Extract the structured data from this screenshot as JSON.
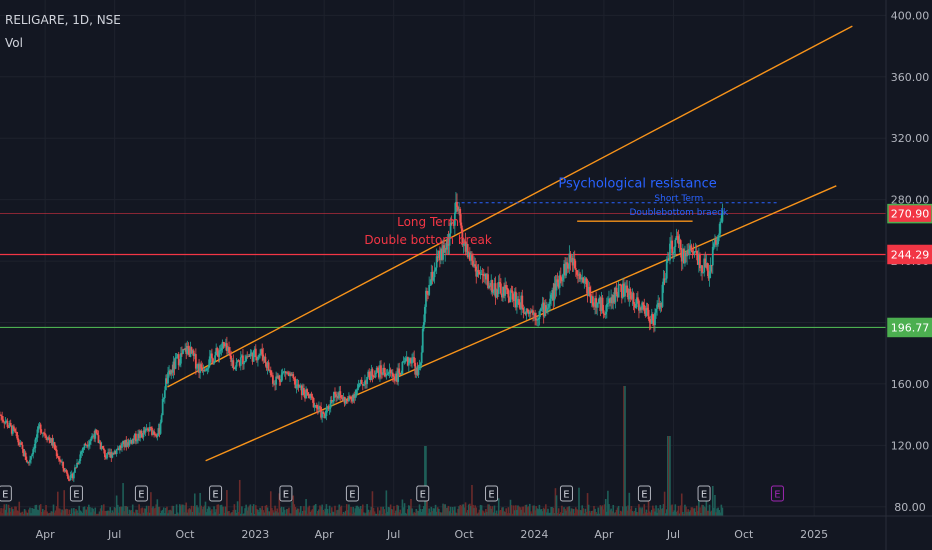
{
  "header": {
    "symbol_line": "RELIGARE, 1D, NSE",
    "volume_label": "Vol"
  },
  "colors": {
    "background": "#131722",
    "up": "#26a69a",
    "down": "#ef5350",
    "channel": "#f7931a",
    "resistance": "#f23645",
    "support": "#4caf50",
    "psych": "#2962ff",
    "grid": "#1e222d",
    "axis_text": "#b2b5be",
    "volume": "#3a5a50"
  },
  "chart_data": {
    "type": "candlestick",
    "title": "RELIGARE, 1D, NSE",
    "y_axis": {
      "ticks": [
        80,
        120,
        160,
        200,
        240,
        280,
        320,
        360,
        400
      ],
      "tick_labels": [
        "80.00",
        "120.00",
        "160.00",
        "200.00",
        "240.00",
        "280.00",
        "320.00",
        "360.00",
        "400.00"
      ],
      "range": [
        74,
        410
      ]
    },
    "x_axis": {
      "labels": [
        "Apr",
        "Jul",
        "Oct",
        "2023",
        "Apr",
        "Jul",
        "Oct",
        "2024",
        "Apr",
        "Jul",
        "Oct",
        "2025"
      ],
      "range": [
        "2022-02-01",
        "2025-04-05"
      ]
    },
    "price_badges": [
      {
        "value": 270.9,
        "label": "270.90",
        "color": "#f23645",
        "border": "#4caf50"
      },
      {
        "value": 244.29,
        "label": "244.29",
        "color": "#f23645",
        "border": "#f23645"
      },
      {
        "value": 196.77,
        "label": "196.77",
        "color": "#4caf50",
        "border": "#4caf50"
      }
    ],
    "horizontal_lines": [
      {
        "value": 270.9,
        "color": "#f23645",
        "style": "thin"
      },
      {
        "value": 244.29,
        "color": "#f23645",
        "style": "solid"
      },
      {
        "value": 196.77,
        "color": "#4caf50",
        "style": "solid"
      }
    ],
    "trend_lines": [
      {
        "from": [
          "2022-09-08",
          158
        ],
        "to": [
          "2025-02-20",
          393
        ],
        "color": "#f7931a"
      },
      {
        "from": [
          "2022-10-28",
          110
        ],
        "to": [
          "2025-01-30",
          289
        ],
        "color": "#f7931a"
      },
      {
        "from": [
          "2024-02-26",
          266
        ],
        "to": [
          "2024-07-26",
          266
        ],
        "color": "#f7931a"
      }
    ],
    "dashed_lines": [
      {
        "from": [
          "2023-09-20",
          278
        ],
        "to": [
          "2024-11-14",
          278
        ],
        "color": "#2962ff"
      }
    ],
    "annotations": [
      {
        "text": "Psychological resistance",
        "at": [
          "2024-05-15",
          288
        ],
        "color": "#2962ff",
        "size": 13
      },
      {
        "text": "Short Term",
        "at": [
          "2024-07-08",
          279
        ],
        "color": "#2962ff",
        "size": 9
      },
      {
        "text": "Doublebottom braedk",
        "at": [
          "2024-07-08",
          270
        ],
        "color": "#2962ff",
        "size": 9
      },
      {
        "text": "Long Term",
        "at": [
          "2023-08-15",
          263
        ],
        "color": "#f23645",
        "size": 12
      },
      {
        "text": "Double bottom break",
        "at": [
          "2023-08-15",
          251
        ],
        "color": "#f23645",
        "size": 12
      }
    ],
    "earnings_markers": [
      "2022-02-08",
      "2022-05-12",
      "2022-08-05",
      "2022-11-10",
      "2023-02-10",
      "2023-05-08",
      "2023-08-08",
      "2023-11-06",
      "2024-02-12",
      "2024-05-24",
      "2024-08-10",
      "2024-11-14"
    ],
    "earnings_marker_label": "E",
    "price_path": [
      [
        "2022-02-01",
        140
      ],
      [
        "2022-02-20",
        128
      ],
      [
        "2022-03-10",
        108
      ],
      [
        "2022-03-25",
        132
      ],
      [
        "2022-04-10",
        122
      ],
      [
        "2022-04-25",
        105
      ],
      [
        "2022-05-05",
        98
      ],
      [
        "2022-05-20",
        118
      ],
      [
        "2022-06-05",
        128
      ],
      [
        "2022-06-20",
        112
      ],
      [
        "2022-07-05",
        118
      ],
      [
        "2022-07-25",
        124
      ],
      [
        "2022-08-15",
        130
      ],
      [
        "2022-08-28",
        128
      ],
      [
        "2022-09-05",
        160
      ],
      [
        "2022-09-20",
        175
      ],
      [
        "2022-10-05",
        183
      ],
      [
        "2022-10-20",
        170
      ],
      [
        "2022-11-05",
        176
      ],
      [
        "2022-11-20",
        185
      ],
      [
        "2022-12-05",
        172
      ],
      [
        "2022-12-20",
        178
      ],
      [
        "2023-01-10",
        180
      ],
      [
        "2023-01-25",
        162
      ],
      [
        "2023-02-10",
        168
      ],
      [
        "2023-02-25",
        158
      ],
      [
        "2023-03-15",
        150
      ],
      [
        "2023-04-01",
        138
      ],
      [
        "2023-04-15",
        155
      ],
      [
        "2023-05-01",
        148
      ],
      [
        "2023-05-20",
        160
      ],
      [
        "2023-06-05",
        168
      ],
      [
        "2023-06-20",
        168
      ],
      [
        "2023-07-05",
        165
      ],
      [
        "2023-07-15",
        172
      ],
      [
        "2023-07-25",
        178
      ],
      [
        "2023-08-01",
        165
      ],
      [
        "2023-08-05",
        175
      ],
      [
        "2023-08-12",
        215
      ],
      [
        "2023-08-25",
        238
      ],
      [
        "2023-09-05",
        246
      ],
      [
        "2023-09-15",
        262
      ],
      [
        "2023-09-22",
        275
      ],
      [
        "2023-10-01",
        250
      ],
      [
        "2023-10-20",
        232
      ],
      [
        "2023-11-10",
        222
      ],
      [
        "2023-12-01",
        218
      ],
      [
        "2023-12-20",
        210
      ],
      [
        "2024-01-05",
        205
      ],
      [
        "2024-01-20",
        212
      ],
      [
        "2024-02-05",
        232
      ],
      [
        "2024-02-20",
        242
      ],
      [
        "2024-03-05",
        228
      ],
      [
        "2024-03-20",
        212
      ],
      [
        "2024-04-05",
        210
      ],
      [
        "2024-04-20",
        222
      ],
      [
        "2024-05-05",
        218
      ],
      [
        "2024-05-20",
        210
      ],
      [
        "2024-06-05",
        202
      ],
      [
        "2024-06-15",
        215
      ],
      [
        "2024-06-25",
        246
      ],
      [
        "2024-07-05",
        252
      ],
      [
        "2024-07-15",
        242
      ],
      [
        "2024-07-25",
        250
      ],
      [
        "2024-08-05",
        240
      ],
      [
        "2024-08-15",
        232
      ],
      [
        "2024-08-25",
        252
      ],
      [
        "2024-09-03",
        271
      ]
    ]
  }
}
